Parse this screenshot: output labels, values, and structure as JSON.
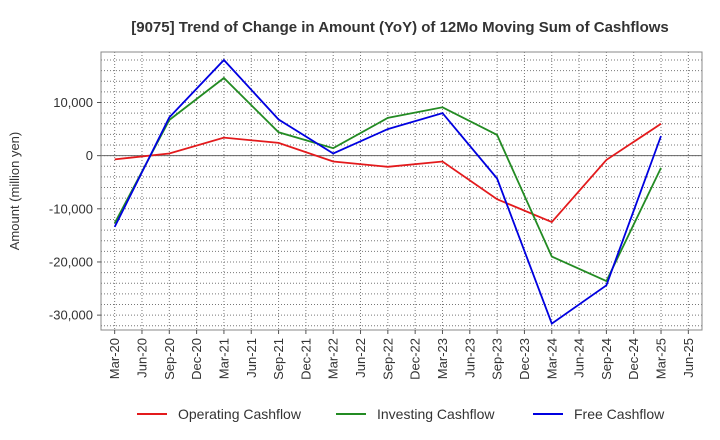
{
  "chart_data": {
    "type": "line",
    "title": "[9075]  Trend of Change in Amount (YoY) of 12Mo Moving Sum of Cashflows",
    "xlabel": "",
    "ylabel": "Amount (million yen)",
    "categories": [
      "Mar-20",
      "Jun-20",
      "Sep-20",
      "Dec-20",
      "Mar-21",
      "Jun-21",
      "Sep-21",
      "Dec-21",
      "Mar-22",
      "Jun-22",
      "Sep-22",
      "Dec-22",
      "Mar-23",
      "Jun-23",
      "Sep-23",
      "Dec-23",
      "Mar-24",
      "Jun-24",
      "Sep-24",
      "Dec-24",
      "Mar-25",
      "Jun-25"
    ],
    "yticks": [
      -30000,
      -20000,
      -10000,
      0,
      10000
    ],
    "ytick_labels": [
      "-30,000",
      "-20,000",
      "-10,000",
      "0",
      "10,000"
    ],
    "ylim": [
      -32800,
      19500
    ],
    "grid": true,
    "legend_position": "bottom",
    "series": [
      {
        "name": "Operating Cashflow",
        "color": "#e31a1c",
        "values": [
          -700,
          null,
          400,
          null,
          3400,
          null,
          2400,
          null,
          -1100,
          null,
          -2100,
          null,
          -1100,
          null,
          -8200,
          null,
          -12500,
          null,
          -800,
          null,
          6000,
          null
        ]
      },
      {
        "name": "Investing Cashflow",
        "color": "#238b23",
        "values": [
          -12700,
          null,
          6700,
          null,
          14600,
          null,
          4400,
          null,
          1400,
          null,
          7100,
          null,
          9100,
          null,
          3900,
          null,
          -19000,
          null,
          -23600,
          null,
          -2300,
          null
        ]
      },
      {
        "name": "Free Cashflow",
        "color": "#0000e0",
        "values": [
          -13400,
          null,
          7200,
          null,
          18000,
          null,
          6800,
          null,
          400,
          null,
          5000,
          null,
          8000,
          null,
          -4300,
          null,
          -31600,
          null,
          -24400,
          null,
          3700,
          null
        ]
      }
    ]
  }
}
